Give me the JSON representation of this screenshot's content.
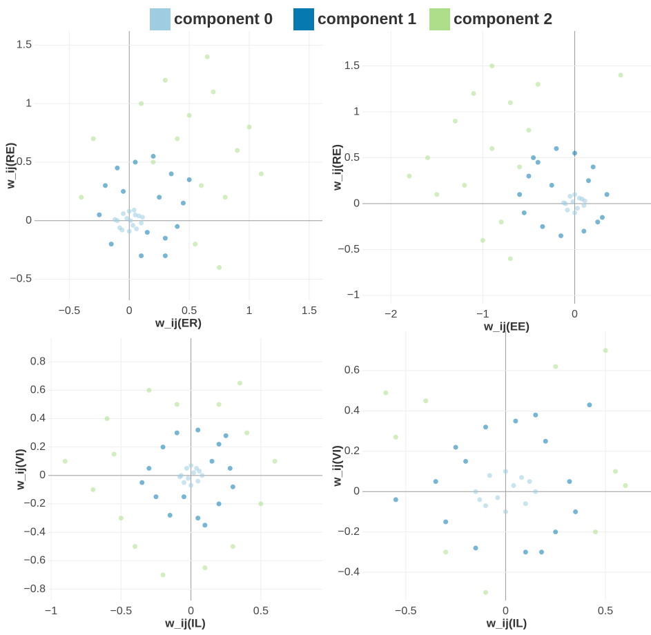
{
  "chart_data": [
    {
      "type": "scatter",
      "x_label": "w_ij(ER)",
      "y_label": "w_ij(RE)",
      "xlim": [
        -0.79,
        1.61
      ],
      "ylim": [
        -0.68,
        1.62
      ],
      "xticks": [
        {
          "value": -0.5,
          "label": "−0.5"
        },
        0,
        0.5,
        1,
        1.5
      ],
      "yticks": [
        {
          "value": -0.5,
          "label": "−0.5"
        },
        0,
        0.5,
        1,
        1.5
      ],
      "grid": true,
      "series": [
        {
          "name": "component 0",
          "color": "#9ecde2",
          "x": [
            -0.1,
            -0.05,
            0,
            0.05,
            0.1,
            -0.08,
            0.08,
            0,
            -0.02,
            0.03,
            -0.12,
            0.11,
            0.04,
            -0.06,
            0.06,
            0.01
          ],
          "y": [
            0,
            0.06,
            0.08,
            0.05,
            -0.02,
            -0.06,
            0.04,
            -0.09,
            0.02,
            -0.04,
            0.01,
            0.03,
            0.09,
            -0.08,
            -0.07,
            0
          ]
        },
        {
          "name": "component 1",
          "color": "#0679b1",
          "x": [
            -0.2,
            -0.1,
            0.05,
            0.2,
            0.35,
            0.45,
            0.3,
            0.1,
            -0.15,
            0.4,
            0.25,
            -0.05,
            0.15,
            0.5,
            -0.25,
            0.3
          ],
          "y": [
            0.3,
            0.45,
            0.5,
            0.55,
            0.4,
            0.15,
            -0.15,
            -0.3,
            -0.2,
            -0.05,
            0.2,
            0.25,
            -0.1,
            0.35,
            0.05,
            -0.3
          ]
        },
        {
          "name": "component 2",
          "color": "#addf8b",
          "x": [
            -0.3,
            0.1,
            0.3,
            0.5,
            0.7,
            0.9,
            0.6,
            0.8,
            0.4,
            0.2,
            1.1,
            0.55,
            -0.4,
            1.0,
            0.75,
            0.65
          ],
          "y": [
            0.7,
            1.0,
            1.2,
            0.9,
            1.1,
            0.6,
            0.3,
            0.2,
            0.7,
            0.5,
            0.4,
            -0.2,
            0.2,
            0.8,
            -0.4,
            1.4
          ]
        }
      ]
    },
    {
      "type": "scatter",
      "x_label": "w_ij(EE)",
      "y_label": "w_ij(RE)",
      "xlim": [
        -2.31,
        0.83
      ],
      "ylim": [
        -1.09,
        1.88
      ],
      "xticks": [
        {
          "value": -2,
          "label": "−2"
        },
        {
          "value": -1,
          "label": "−1"
        },
        0
      ],
      "yticks": [
        {
          "value": -1,
          "label": "−1"
        },
        {
          "value": -0.5,
          "label": "−0.5"
        },
        0,
        0.5,
        1,
        1.5
      ],
      "grid": true,
      "series": [
        {
          "color": "#9ecde2",
          "x": [
            -0.1,
            -0.05,
            0,
            0.05,
            0.1,
            -0.08,
            0.08,
            0,
            -0.02,
            0.03,
            -0.12,
            0.11
          ],
          "y": [
            0,
            0.08,
            0.1,
            0.06,
            -0.02,
            -0.07,
            0.05,
            -0.1,
            0.02,
            -0.05,
            0.01,
            0.03
          ]
        },
        {
          "color": "#0679b1",
          "x": [
            -0.6,
            -0.5,
            -0.4,
            -0.2,
            0,
            0.2,
            0.35,
            0.3,
            0.1,
            -0.15,
            -0.35,
            -0.55,
            -0.25,
            0.15,
            -0.45,
            0.25
          ],
          "y": [
            0.1,
            0.3,
            0.45,
            0.6,
            0.55,
            0.4,
            0.1,
            -0.15,
            -0.3,
            -0.35,
            -0.25,
            -0.1,
            0.2,
            0.25,
            0.5,
            -0.2
          ]
        },
        {
          "color": "#addf8b",
          "x": [
            -1.6,
            -1.3,
            -1.1,
            -0.9,
            -0.7,
            -0.5,
            -1.2,
            -0.8,
            -0.6,
            -1.0,
            -1.5,
            -0.4,
            -0.9,
            -1.8,
            0.5,
            -0.7
          ],
          "y": [
            0.5,
            0.9,
            1.2,
            0.6,
            1.1,
            0.8,
            0.2,
            -0.2,
            0.4,
            -0.4,
            0.1,
            1.3,
            1.5,
            0.3,
            1.4,
            -0.6
          ]
        }
      ]
    },
    {
      "type": "scatter",
      "x_label": "w_ij(IL)",
      "y_label": "w_ij(VI)",
      "xlim": [
        -1.02,
        0.94
      ],
      "ylim": [
        -0.88,
        0.966
      ],
      "xticks": [
        {
          "value": -1,
          "label": "−1"
        },
        {
          "value": -0.5,
          "label": "−0.5"
        },
        0,
        0.5
      ],
      "yticks": [
        {
          "value": -0.8,
          "label": "−0.8"
        },
        {
          "value": -0.6,
          "label": "−0.6"
        },
        {
          "value": -0.4,
          "label": "−0.4"
        },
        {
          "value": -0.2,
          "label": "−0.2"
        },
        0,
        0.2,
        0.4,
        0.6,
        0.8
      ],
      "grid": true,
      "series": [
        {
          "color": "#9ecde2",
          "x": [
            -0.07,
            -0.03,
            0,
            0.04,
            0.08,
            -0.05,
            0.05,
            0,
            0.02,
            -0.02,
            0.06,
            -0.08
          ],
          "y": [
            0,
            0.05,
            0.07,
            0.05,
            0,
            -0.05,
            -0.04,
            -0.07,
            0.02,
            -0.02,
            0.03,
            -0.01
          ]
        },
        {
          "color": "#0679b1",
          "x": [
            -0.3,
            -0.2,
            -0.1,
            0.05,
            0.2,
            0.28,
            0.2,
            0.05,
            -0.15,
            -0.25,
            0.15,
            -0.05,
            0.3,
            -0.35,
            0.1,
            0.25
          ],
          "y": [
            0.05,
            0.2,
            0.3,
            0.32,
            0.22,
            0.05,
            -0.2,
            -0.3,
            -0.28,
            -0.15,
            0.1,
            -0.15,
            -0.08,
            -0.05,
            -0.35,
            0.28
          ]
        },
        {
          "color": "#addf8b",
          "x": [
            -0.9,
            -0.6,
            -0.5,
            -0.3,
            -0.1,
            0.2,
            0.4,
            0.5,
            0.3,
            -0.4,
            -0.7,
            0.1,
            -0.2,
            0.6,
            -0.55,
            0.35
          ],
          "y": [
            0.1,
            0.4,
            -0.3,
            0.6,
            0.5,
            0.5,
            0.3,
            -0.2,
            -0.5,
            -0.5,
            -0.1,
            -0.65,
            -0.7,
            0.1,
            0.15,
            0.65
          ]
        }
      ]
    },
    {
      "type": "scatter",
      "x_label": "w_ij(IL)",
      "y_label": "w_ij(VI)",
      "xlim": [
        -0.717,
        0.728
      ],
      "ylim": [
        -0.54,
        0.795
      ],
      "xticks": [
        {
          "value": -0.5,
          "label": "−0.5"
        },
        0,
        0.5
      ],
      "yticks": [
        {
          "value": -0.4,
          "label": "−0.4"
        },
        {
          "value": -0.2,
          "label": "−0.2"
        },
        0,
        0.2,
        0.4,
        0.6
      ],
      "grid": true,
      "series": [
        {
          "color": "#9ecde2",
          "x": [
            -0.15,
            -0.08,
            0,
            0.08,
            0.15,
            -0.1,
            0.1,
            0,
            0.04,
            -0.04,
            0.12,
            -0.13
          ],
          "y": [
            0,
            0.08,
            0.1,
            0.07,
            0,
            -0.07,
            -0.06,
            -0.1,
            0.03,
            -0.03,
            0.05,
            -0.04
          ]
        },
        {
          "color": "#0679b1",
          "x": [
            -0.35,
            -0.25,
            -0.1,
            0.05,
            0.2,
            0.32,
            0.25,
            0.1,
            -0.15,
            -0.3,
            0.35,
            -0.2,
            0.15,
            -0.55,
            0.18,
            0.42
          ],
          "y": [
            0.05,
            0.22,
            0.32,
            0.35,
            0.25,
            0.05,
            -0.2,
            -0.3,
            -0.28,
            -0.15,
            -0.1,
            0.15,
            0.38,
            -0.04,
            -0.3,
            0.43
          ]
        },
        {
          "color": "#addf8b",
          "x": [
            -0.6,
            -0.55,
            -0.4,
            0.5,
            0.6,
            0.45,
            -0.3,
            0.25,
            -0.1,
            0.55
          ],
          "y": [
            0.49,
            0.27,
            0.45,
            0.7,
            0.03,
            -0.2,
            -0.3,
            0.62,
            -0.5,
            0.1
          ]
        }
      ]
    }
  ]
}
